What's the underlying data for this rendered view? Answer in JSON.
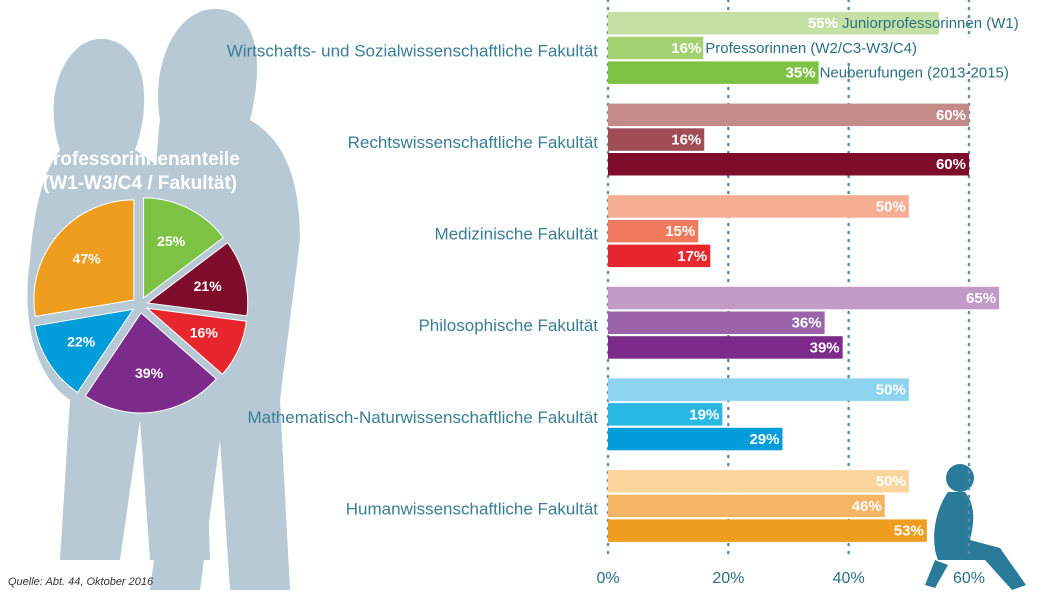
{
  "chart_data": [
    {
      "type": "pie",
      "title": [
        "Professorinnenanteile",
        "(W1-W3/C4 / Fakultät)"
      ],
      "values": [
        25,
        21,
        16,
        39,
        22,
        47
      ],
      "value_labels": [
        "25%",
        "21%",
        "16%",
        "39%",
        "22%",
        "47%"
      ],
      "colors": [
        "#7dc242",
        "#7d0d2b",
        "#e8262d",
        "#7d2b8a",
        "#009ddb",
        "#ee9d1f"
      ]
    },
    {
      "type": "bar",
      "categories": [
        "Wirtschafts- und Sozialwissenschaftliche Fakultät",
        "Rechtswissenschaftliche Fakultät",
        "Medizinische Fakultät",
        "Philosophische Fakultät",
        "Mathematisch-Naturwissenschaftliche Fakultät",
        "Humanwissenschaftliche Fakultät"
      ],
      "series": [
        {
          "name": "Juniorprofessorinnen (W1)",
          "values": [
            55,
            60,
            50,
            65,
            50,
            50
          ],
          "value_labels": [
            "55%",
            "60%",
            "50%",
            "65%",
            "50%",
            "50%"
          ],
          "colors": [
            "#c5e0a5",
            "#c48a87",
            "#f7ad93",
            "#c29ac8",
            "#8ed3ef",
            "#fbd59b"
          ]
        },
        {
          "name": "Professorinnen (W2/C3-W3/C4)",
          "values": [
            16,
            16,
            15,
            36,
            19,
            46
          ],
          "value_labels": [
            "16%",
            "16%",
            "15%",
            "36%",
            "19%",
            "46%"
          ],
          "colors": [
            "#a4d16f",
            "#a24d55",
            "#f07a5c",
            "#9b63a8",
            "#29b7e6",
            "#f5b565"
          ]
        },
        {
          "name": "Neuberufungen (2013-2015)",
          "values": [
            35,
            60,
            17,
            39,
            29,
            53
          ],
          "value_labels": [
            "35%",
            "60%",
            "17%",
            "39%",
            "29%",
            "53%"
          ],
          "colors": [
            "#7dc242",
            "#7d0d2b",
            "#e8262d",
            "#7d2b8a",
            "#009ddb",
            "#ee9d1f"
          ]
        }
      ],
      "xlim": [
        0,
        70
      ],
      "xticks": [
        {
          "value": 0,
          "label": "0%"
        },
        {
          "value": 20,
          "label": "20%"
        },
        {
          "value": 40,
          "label": "40%"
        },
        {
          "value": 60,
          "label": "60%"
        }
      ],
      "grid": true
    }
  ],
  "source": "Quelle: Abt. 44, Oktober 2016"
}
